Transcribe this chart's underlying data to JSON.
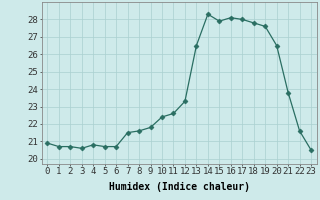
{
  "x": [
    0,
    1,
    2,
    3,
    4,
    5,
    6,
    7,
    8,
    9,
    10,
    11,
    12,
    13,
    14,
    15,
    16,
    17,
    18,
    19,
    20,
    21,
    22,
    23
  ],
  "y": [
    20.9,
    20.7,
    20.7,
    20.6,
    20.8,
    20.7,
    20.7,
    21.5,
    21.6,
    21.8,
    22.4,
    22.6,
    23.3,
    26.5,
    28.3,
    27.9,
    28.1,
    28.0,
    27.8,
    27.6,
    26.5,
    23.8,
    21.6,
    20.5
  ],
  "xlabel": "Humidex (Indice chaleur)",
  "xlim": [
    -0.5,
    23.5
  ],
  "ylim": [
    19.7,
    29.0
  ],
  "yticks": [
    20,
    21,
    22,
    23,
    24,
    25,
    26,
    27,
    28
  ],
  "xticks": [
    0,
    1,
    2,
    3,
    4,
    5,
    6,
    7,
    8,
    9,
    10,
    11,
    12,
    13,
    14,
    15,
    16,
    17,
    18,
    19,
    20,
    21,
    22,
    23
  ],
  "line_color": "#2a6e62",
  "marker": "D",
  "marker_size": 2.5,
  "bg_color": "#ceeaea",
  "grid_color": "#aad0d0",
  "xlabel_fontsize": 7,
  "tick_fontsize": 6.5,
  "spine_color": "#888888"
}
